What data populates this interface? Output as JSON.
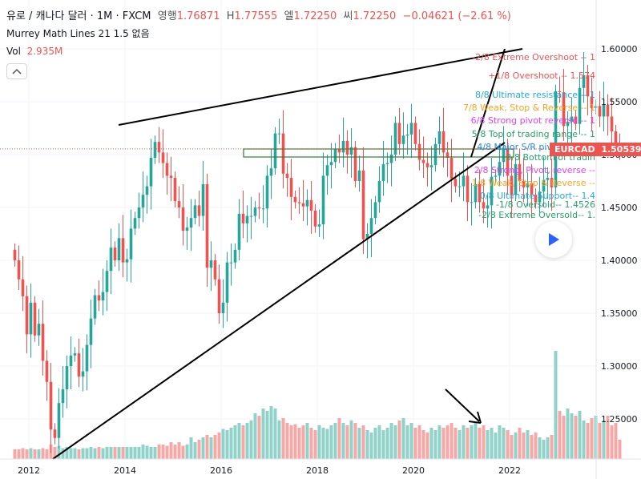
{
  "header": {
    "symbol": "유로 / 캐나다 달러 · 1M · FXCM",
    "o_label": "영행",
    "o_value": "1.76871",
    "h_label": "H",
    "h_value": "1.77555",
    "l_label": "엘",
    "l_value": "1.72250",
    "c_label": "씨",
    "c_value": "1.72250",
    "change": "−0.04621 (−2.61 %)",
    "indicator": "Murrey Math Lines 21 1.5 없음",
    "vol_label": "Vol",
    "vol_value": "2.935M"
  },
  "price_tag": {
    "symbol": "EURCAD",
    "value": "1.50539"
  },
  "murrey_labels": [
    {
      "text": "-2/8 Extreme Overshoot --  1",
      "color": "#ef5350",
      "price": 1.592
    },
    {
      "text": "+1/8 Overshoot --  1.574",
      "color": "#ef5350",
      "price": 1.574
    },
    {
      "text": "8/8 Ultimate resistance --  1",
      "color": "#26a9cf",
      "price": 1.556
    },
    {
      "text": "7/8 Weak, Stop & Reverse --  1",
      "color": "#f5a623",
      "price": 1.544
    },
    {
      "text": "6/8 Strong pivot reverse --  1",
      "color": "#e040fb",
      "price": 1.532
    },
    {
      "text": "5/8 Top of trading range --  1",
      "color": "#26a269",
      "price": 1.519
    },
    {
      "text": "4/8 Major S/R pivot point --",
      "color": "#1e88e5",
      "price": 1.507
    },
    {
      "text": "3/8 Bottom of tradin",
      "color": "#26a269",
      "price": 1.497
    },
    {
      "text": "2/8 Strong, Pivot, reverse --",
      "color": "#e040fb",
      "price": 1.485
    },
    {
      "text": "1/8 Weak, Stop & Reverse --",
      "color": "#f5a623",
      "price": 1.4725
    },
    {
      "text": "0/8 Ultimate Support--  1.4",
      "color": "#26a9cf",
      "price": 1.4605
    },
    {
      "text": "-1/8 Oversold--  1.4526",
      "color": "#26a269",
      "price": 1.4526
    },
    {
      "text": "-2/8 Extreme Oversold--  1.",
      "color": "#26a269",
      "price": 1.4425
    }
  ],
  "colors": {
    "up": "#26a69a",
    "down": "#ef5350",
    "up_vol": "#8fd2c8",
    "down_vol": "#f5a8a6",
    "line": "#000000",
    "box": "#2e7d32"
  },
  "icons": {
    "collapse": "chevron-up-icon",
    "play": "play-icon",
    "arrow": "arrow-down-right-icon"
  },
  "chart_data": {
    "type": "candlestick",
    "ylim": [
      1.21,
      1.62
    ],
    "xlim": [
      "2011-09",
      "2022-06"
    ],
    "y_ticks": [
      "1.60000",
      "1.55000",
      "1.50000",
      "1.45000",
      "1.40000",
      "1.35000",
      "1.30000",
      "1.25000"
    ],
    "y_tick_values": [
      1.6,
      1.55,
      1.5,
      1.45,
      1.4,
      1.35,
      1.3,
      1.25
    ],
    "x_ticks": [
      "2012",
      "2014",
      "2016",
      "2018",
      "2020",
      "2022"
    ],
    "x_tick_values": [
      2012,
      2014,
      2016,
      2018,
      2020,
      2022
    ],
    "series": [
      {
        "name": "EURCAD",
        "interval": "1M",
        "start": "2011-09",
        "close": [
          1.4,
          1.382,
          1.366,
          1.33,
          1.36,
          1.329,
          1.34,
          1.305,
          1.285,
          1.24,
          1.232,
          1.265,
          1.278,
          1.3,
          1.31,
          1.312,
          1.29,
          1.295,
          1.32,
          1.345,
          1.367,
          1.362,
          1.37,
          1.39,
          1.412,
          1.4,
          1.421,
          1.398,
          1.401,
          1.43,
          1.44,
          1.45,
          1.462,
          1.47,
          1.497,
          1.512,
          1.502,
          1.492,
          1.48,
          1.478,
          1.456,
          1.45,
          1.428,
          1.431,
          1.44,
          1.452,
          1.442,
          1.472,
          1.393,
          1.4,
          1.382,
          1.35,
          1.36,
          1.398,
          1.398,
          1.41,
          1.444,
          1.435,
          1.442,
          1.442,
          1.45,
          1.449,
          1.449,
          1.48,
          1.487,
          1.52,
          1.52,
          1.482,
          1.478,
          1.46,
          1.455,
          1.454,
          1.451,
          1.457,
          1.447,
          1.432,
          1.434,
          1.48,
          1.49,
          1.493,
          1.505,
          1.502,
          1.513,
          1.5,
          1.507,
          1.475,
          1.485,
          1.42,
          1.425,
          1.44,
          1.455,
          1.475,
          1.491,
          1.492,
          1.5,
          1.53,
          1.51,
          1.518,
          1.519,
          1.53,
          1.51,
          1.495,
          1.492,
          1.488,
          1.49,
          1.51,
          1.522,
          1.502,
          1.497,
          1.477,
          1.47,
          1.47,
          1.48,
          1.455,
          1.455,
          1.472,
          1.455,
          1.449,
          1.452,
          1.479,
          1.48,
          1.493,
          1.505,
          1.48,
          1.462,
          1.491,
          1.475,
          1.469,
          1.473,
          1.462,
          1.455,
          1.465,
          1.476,
          1.478,
          1.469,
          1.56,
          1.559,
          1.527,
          1.531,
          1.536,
          1.529,
          1.563,
          1.575,
          1.555,
          1.544,
          1.546,
          1.536,
          1.547,
          1.536,
          1.522,
          1.506,
          1.505
        ]
      }
    ],
    "volume_ylim": [
      0,
      1.0
    ],
    "volume": [
      0.08,
      0.08,
      0.09,
      0.08,
      0.09,
      0.08,
      0.08,
      0.09,
      0.08,
      0.12,
      0.1,
      0.11,
      0.09,
      0.1,
      0.09,
      0.09,
      0.08,
      0.09,
      0.09,
      0.1,
      0.09,
      0.1,
      0.09,
      0.1,
      0.1,
      0.1,
      0.1,
      0.1,
      0.1,
      0.1,
      0.1,
      0.1,
      0.12,
      0.11,
      0.1,
      0.1,
      0.12,
      0.12,
      0.11,
      0.14,
      0.12,
      0.14,
      0.11,
      0.12,
      0.18,
      0.14,
      0.16,
      0.18,
      0.2,
      0.18,
      0.2,
      0.22,
      0.25,
      0.24,
      0.26,
      0.28,
      0.3,
      0.28,
      0.3,
      0.32,
      0.38,
      0.36,
      0.42,
      0.4,
      0.44,
      0.42,
      0.32,
      0.34,
      0.3,
      0.28,
      0.29,
      0.26,
      0.28,
      0.3,
      0.26,
      0.24,
      0.28,
      0.26,
      0.25,
      0.28,
      0.3,
      0.34,
      0.3,
      0.28,
      0.32,
      0.3,
      0.26,
      0.28,
      0.24,
      0.22,
      0.26,
      0.28,
      0.24,
      0.26,
      0.3,
      0.28,
      0.32,
      0.34,
      0.28,
      0.3,
      0.26,
      0.28,
      0.24,
      0.22,
      0.26,
      0.24,
      0.28,
      0.26,
      0.28,
      0.3,
      0.26,
      0.24,
      0.28,
      0.26,
      0.28,
      0.3,
      0.26,
      0.28,
      0.24,
      0.26,
      0.22,
      0.28,
      0.26,
      0.24,
      0.2,
      0.22,
      0.26,
      0.22,
      0.24,
      0.2,
      0.22,
      0.18,
      0.16,
      0.18,
      0.2,
      0.9,
      0.4,
      0.36,
      0.42,
      0.38,
      0.36,
      0.4,
      0.32,
      0.3,
      0.34,
      0.36,
      0.3,
      0.32,
      0.36,
      0.28,
      0.3,
      0.16
    ]
  }
}
